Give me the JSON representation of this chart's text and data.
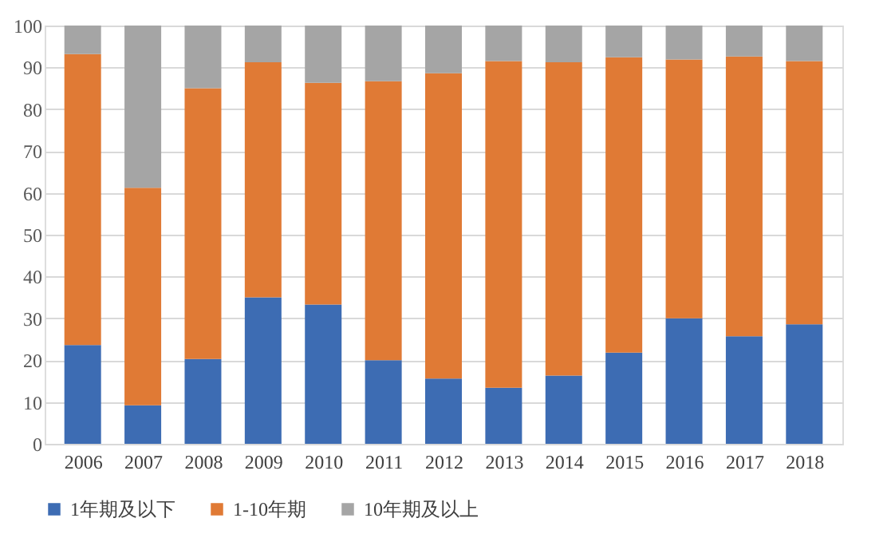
{
  "chart_data": {
    "type": "bar",
    "stacked": true,
    "categories": [
      "2006",
      "2007",
      "2008",
      "2009",
      "2010",
      "2011",
      "2012",
      "2013",
      "2014",
      "2015",
      "2016",
      "2017",
      "2018"
    ],
    "series": [
      {
        "name": "1年期及以下",
        "color": "#3d6cb3",
        "values": [
          23.6,
          9.2,
          20.3,
          35,
          33.3,
          20,
          15.6,
          13.4,
          16.3,
          21.8,
          30,
          25.7,
          28.6
        ]
      },
      {
        "name": "1-10年期",
        "color": "#e07a35",
        "values": [
          69.6,
          52,
          64.7,
          56.2,
          53,
          66.7,
          73,
          78.1,
          74.9,
          70.6,
          61.9,
          66.9,
          62.9
        ]
      },
      {
        "name": "10年期及以上",
        "color": "#a5a5a5",
        "values": [
          6.8,
          38.8,
          15,
          8.8,
          13.7,
          13.3,
          11.4,
          8.5,
          8.8,
          7.6,
          8.1,
          7.4,
          8.5
        ]
      }
    ],
    "ylim": [
      0,
      100
    ],
    "yticks": [
      0,
      10,
      20,
      30,
      40,
      50,
      60,
      70,
      80,
      90,
      100
    ],
    "grid": "y",
    "legend": "bottom"
  }
}
